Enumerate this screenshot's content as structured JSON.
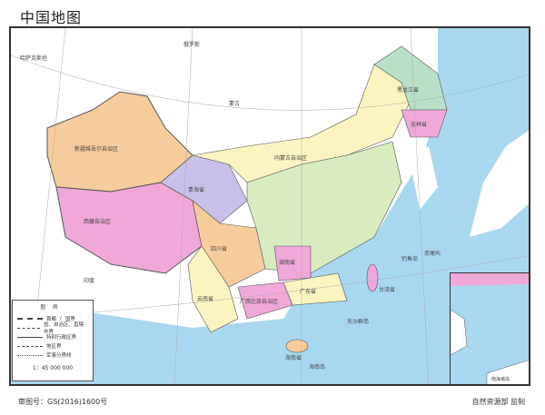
{
  "title": "中国地图",
  "map": {
    "countries": [
      "俄罗斯",
      "蒙古",
      "哈萨克斯坦",
      "印度"
    ],
    "provinces": [
      {
        "name": "新疆维吾尔自治区",
        "color": "#f7cc9c"
      },
      {
        "name": "西藏自治区",
        "color": "#f0a8d8"
      },
      {
        "name": "青海省",
        "color": "#c8c0e8"
      },
      {
        "name": "四川省",
        "color": "#f7cc9c"
      },
      {
        "name": "内蒙古自治区",
        "color": "#fbf4c0"
      },
      {
        "name": "黑龙江省",
        "color": "#b8e0c8"
      },
      {
        "name": "吉林省",
        "color": "#f0a8d8"
      },
      {
        "name": "云南省",
        "color": "#fbf4c0"
      },
      {
        "name": "广西壮族自治区",
        "color": "#f0a8d8"
      },
      {
        "name": "广东省",
        "color": "#fbf4c0"
      },
      {
        "name": "湖南省",
        "color": "#f0a8d8"
      },
      {
        "name": "台湾省",
        "color": "#f0a8d8"
      },
      {
        "name": "海南省",
        "color": "#f7cc9c"
      }
    ],
    "islands": [
      "钓鱼岛",
      "赤尾屿",
      "东沙群岛",
      "海南岛"
    ],
    "inset_title": "南海诸岛"
  },
  "legend": {
    "title": "图例",
    "items": [
      "首都",
      "国界",
      "省、自治区、直辖市界",
      "特别行政区界",
      "地区界",
      "军事分界线"
    ],
    "scale": "1：45 000 000"
  },
  "footer": {
    "approval": "审图号：GS(2016)1600号",
    "publisher": "自然资源部 监制"
  },
  "colors": {
    "sea": "#a8d8f0",
    "border": "#555555"
  }
}
